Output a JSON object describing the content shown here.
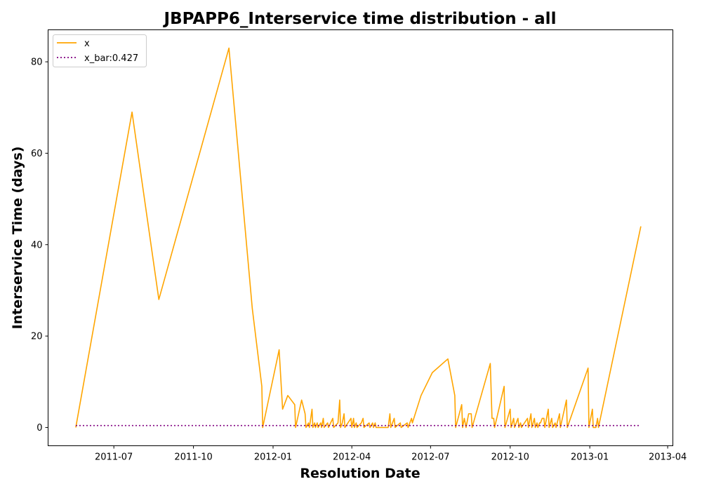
{
  "chart_data": {
    "type": "line",
    "title": "JBPAPP6_Interservice time distribution - all",
    "xlabel": "Resolution Date",
    "ylabel": "Interservice Time (days)",
    "x_ticks": [
      "2011-07",
      "2011-10",
      "2012-01",
      "2012-04",
      "2012-07",
      "2012-10",
      "2013-01",
      "2013-04"
    ],
    "y_ticks": [
      "0",
      "20",
      "40",
      "60",
      "80"
    ],
    "ylim": [
      -4,
      87
    ],
    "xlim": [
      "2011-04-16",
      "2013-04-07"
    ],
    "legend": {
      "placement": "upper-left"
    },
    "grid": false,
    "series": [
      {
        "name": "x",
        "color": "#ffa500",
        "style": "solid",
        "points": [
          [
            "2011-05-18",
            0
          ],
          [
            "2011-07-22",
            69
          ],
          [
            "2011-08-22",
            28
          ],
          [
            "2011-11-11",
            83
          ],
          [
            "2011-12-08",
            26
          ],
          [
            "2011-12-19",
            9
          ],
          [
            "2011-12-20",
            0
          ],
          [
            "2012-01-08",
            17
          ],
          [
            "2012-01-12",
            4
          ],
          [
            "2012-01-18",
            7
          ],
          [
            "2012-01-26",
            5
          ],
          [
            "2012-01-27",
            0
          ],
          [
            "2012-02-03",
            6
          ],
          [
            "2012-02-07",
            3
          ],
          [
            "2012-02-08",
            0
          ],
          [
            "2012-02-11",
            1
          ],
          [
            "2012-02-12",
            0
          ],
          [
            "2012-02-15",
            4
          ],
          [
            "2012-02-16",
            0
          ],
          [
            "2012-02-18",
            1
          ],
          [
            "2012-02-19",
            0
          ],
          [
            "2012-02-21",
            1
          ],
          [
            "2012-02-22",
            0
          ],
          [
            "2012-02-25",
            1
          ],
          [
            "2012-02-26",
            0
          ],
          [
            "2012-02-28",
            2
          ],
          [
            "2012-02-29",
            0
          ],
          [
            "2012-03-04",
            1
          ],
          [
            "2012-03-05",
            0
          ],
          [
            "2012-03-10",
            2
          ],
          [
            "2012-03-11",
            0
          ],
          [
            "2012-03-16",
            1
          ],
          [
            "2012-03-18",
            6
          ],
          [
            "2012-03-19",
            0
          ],
          [
            "2012-03-21",
            1
          ],
          [
            "2012-03-23",
            3
          ],
          [
            "2012-03-24",
            0
          ],
          [
            "2012-03-31",
            2
          ],
          [
            "2012-04-01",
            0
          ],
          [
            "2012-04-03",
            2
          ],
          [
            "2012-04-04",
            0
          ],
          [
            "2012-04-06",
            1
          ],
          [
            "2012-04-07",
            0
          ],
          [
            "2012-04-12",
            1
          ],
          [
            "2012-04-14",
            2
          ],
          [
            "2012-04-15",
            0
          ],
          [
            "2012-04-21",
            1
          ],
          [
            "2012-04-22",
            0
          ],
          [
            "2012-04-25",
            1
          ],
          [
            "2012-04-26",
            0
          ],
          [
            "2012-04-28",
            1
          ],
          [
            "2012-04-29",
            0
          ],
          [
            "2012-05-13",
            0
          ],
          [
            "2012-05-15",
            3
          ],
          [
            "2012-05-16",
            0
          ],
          [
            "2012-05-20",
            2
          ],
          [
            "2012-05-21",
            0
          ],
          [
            "2012-05-27",
            1
          ],
          [
            "2012-05-28",
            0
          ],
          [
            "2012-06-04",
            1
          ],
          [
            "2012-06-05",
            0
          ],
          [
            "2012-06-09",
            2
          ],
          [
            "2012-06-10",
            1
          ],
          [
            "2012-06-20",
            7
          ],
          [
            "2012-07-03",
            12
          ],
          [
            "2012-07-21",
            15
          ],
          [
            "2012-07-29",
            7
          ],
          [
            "2012-07-30",
            0
          ],
          [
            "2012-08-06",
            5
          ],
          [
            "2012-08-07",
            0
          ],
          [
            "2012-08-09",
            2
          ],
          [
            "2012-08-11",
            0
          ],
          [
            "2012-08-14",
            3
          ],
          [
            "2012-08-17",
            3
          ],
          [
            "2012-08-18",
            0
          ],
          [
            "2012-09-08",
            14
          ],
          [
            "2012-09-10",
            2
          ],
          [
            "2012-09-12",
            2
          ],
          [
            "2012-09-13",
            0
          ],
          [
            "2012-09-24",
            9
          ],
          [
            "2012-09-25",
            0
          ],
          [
            "2012-10-01",
            4
          ],
          [
            "2012-10-02",
            0
          ],
          [
            "2012-10-05",
            2
          ],
          [
            "2012-10-06",
            0
          ],
          [
            "2012-10-10",
            2
          ],
          [
            "2012-10-11",
            0
          ],
          [
            "2012-10-13",
            1
          ],
          [
            "2012-10-14",
            0
          ],
          [
            "2012-10-21",
            2
          ],
          [
            "2012-10-22",
            0
          ],
          [
            "2012-10-25",
            3
          ],
          [
            "2012-10-26",
            0
          ],
          [
            "2012-10-29",
            2
          ],
          [
            "2012-10-30",
            0
          ],
          [
            "2012-11-01",
            1
          ],
          [
            "2012-11-02",
            0
          ],
          [
            "2012-11-04",
            1
          ],
          [
            "2012-11-05",
            1
          ],
          [
            "2012-11-07",
            2
          ],
          [
            "2012-11-09",
            2
          ],
          [
            "2012-11-10",
            0
          ],
          [
            "2012-11-14",
            4
          ],
          [
            "2012-11-15",
            0
          ],
          [
            "2012-11-18",
            2
          ],
          [
            "2012-11-19",
            0
          ],
          [
            "2012-11-22",
            1
          ],
          [
            "2012-11-23",
            0
          ],
          [
            "2012-11-27",
            3
          ],
          [
            "2012-11-28",
            0
          ],
          [
            "2012-12-05",
            6
          ],
          [
            "2012-12-06",
            0
          ],
          [
            "2012-12-30",
            13
          ],
          [
            "2012-12-31",
            0
          ],
          [
            "2013-01-04",
            4
          ],
          [
            "2013-01-05",
            0
          ],
          [
            "2013-01-08",
            0
          ],
          [
            "2013-01-10",
            2
          ],
          [
            "2013-01-11",
            0
          ],
          [
            "2013-03-01",
            44
          ]
        ]
      },
      {
        "name": "x_bar:0.427",
        "color": "#800080",
        "style": "dotted",
        "points": [
          [
            "2011-05-18",
            0.427
          ],
          [
            "2013-03-01",
            0.427
          ]
        ]
      }
    ]
  }
}
